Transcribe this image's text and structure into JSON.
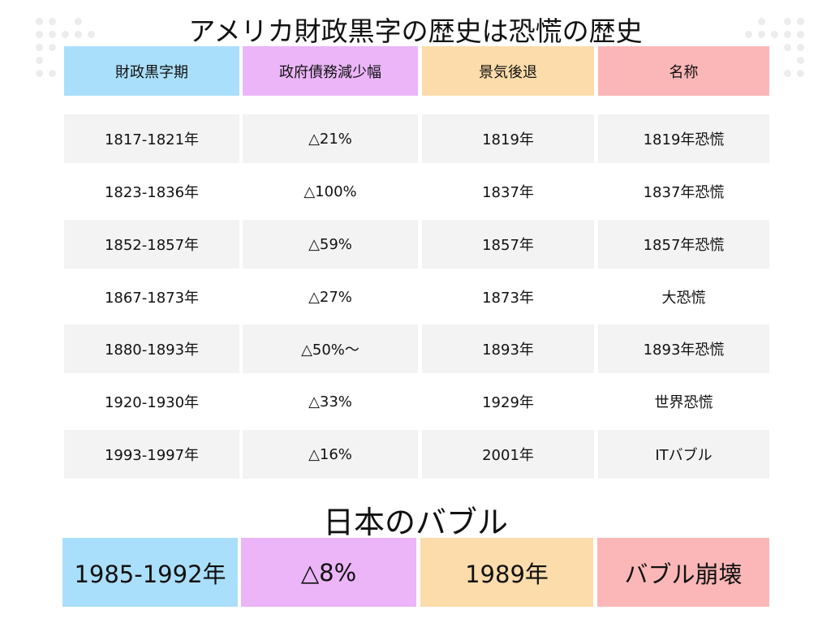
{
  "title": "アメリカ財政黒字の歴史は恐慌の歴史",
  "colors": {
    "col1": "#aadffb",
    "col2": "#ebb5f8",
    "col3": "#fbdcaa",
    "col4": "#fbb7b7",
    "row_alt": "#f3f3f3"
  },
  "table": {
    "headers": [
      "財政黒字期",
      "政府債務減少幅",
      "景気後退",
      "名称"
    ],
    "rows": [
      [
        "1817-1821年",
        "△21%",
        "1819年",
        "1819年恐慌"
      ],
      [
        "1823-1836年",
        "△100%",
        "1837年",
        "1837年恐慌"
      ],
      [
        "1852-1857年",
        "△59%",
        "1857年",
        "1857年恐慌"
      ],
      [
        "1867-1873年",
        "△27%",
        "1873年",
        "大恐慌"
      ],
      [
        "1880-1893年",
        "△50%～",
        "1893年",
        "1893年恐慌"
      ],
      [
        "1920-1930年",
        "△33%",
        "1929年",
        "世界恐慌"
      ],
      [
        "1993-1997年",
        "△16%",
        "2001年",
        "ITバブル"
      ]
    ]
  },
  "japan": {
    "title": "日本のバブル",
    "row": [
      "1985-1992年",
      "△8%",
      "1989年",
      "バブル崩壊"
    ]
  }
}
